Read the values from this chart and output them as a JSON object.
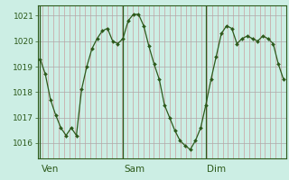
{
  "x_values": [
    0,
    1,
    2,
    3,
    4,
    5,
    6,
    7,
    8,
    9,
    10,
    11,
    12,
    13,
    14,
    15,
    16,
    17,
    18,
    19,
    20,
    21,
    22,
    23,
    24,
    25,
    26,
    27,
    28,
    29,
    30,
    31,
    32,
    33,
    34,
    35,
    36,
    37,
    38,
    39,
    40,
    41,
    42,
    43,
    44,
    45,
    46,
    47
  ],
  "y_values": [
    1019.3,
    1018.7,
    1017.7,
    1017.1,
    1016.6,
    1016.3,
    1016.6,
    1016.3,
    1018.1,
    1019.0,
    1019.7,
    1020.1,
    1020.4,
    1020.5,
    1020.0,
    1019.9,
    1020.1,
    1020.8,
    1021.05,
    1021.05,
    1020.6,
    1019.8,
    1019.1,
    1018.5,
    1017.5,
    1017.0,
    1016.5,
    1016.1,
    1015.9,
    1015.75,
    1016.1,
    1016.6,
    1017.5,
    1018.5,
    1019.4,
    1020.3,
    1020.6,
    1020.5,
    1019.9,
    1020.1,
    1020.2,
    1020.1,
    1020.0,
    1020.2,
    1020.1,
    1019.9,
    1019.1,
    1018.5
  ],
  "ven_x": 0,
  "sam_x": 16,
  "dim_x": 32,
  "n_points": 48,
  "yticks": [
    1016,
    1017,
    1018,
    1019,
    1020,
    1021
  ],
  "ylim": [
    1015.4,
    1021.4
  ],
  "xlim": [
    -0.5,
    47.5
  ],
  "line_color": "#2d5a1b",
  "marker_color": "#2d5a1b",
  "bg_color": "#cceee4",
  "grid_v_color": "#c8a0a0",
  "grid_h_color": "#aaaaaa",
  "day_line_color": "#2d5a1b",
  "tick_label_color": "#2d5a1b",
  "day_label_color": "#2d5a1b",
  "axis_color": "#2d5a1b",
  "ylabel_fontsize": 6.5,
  "xlabel_fontsize": 7.5,
  "n_vgrid": 48
}
